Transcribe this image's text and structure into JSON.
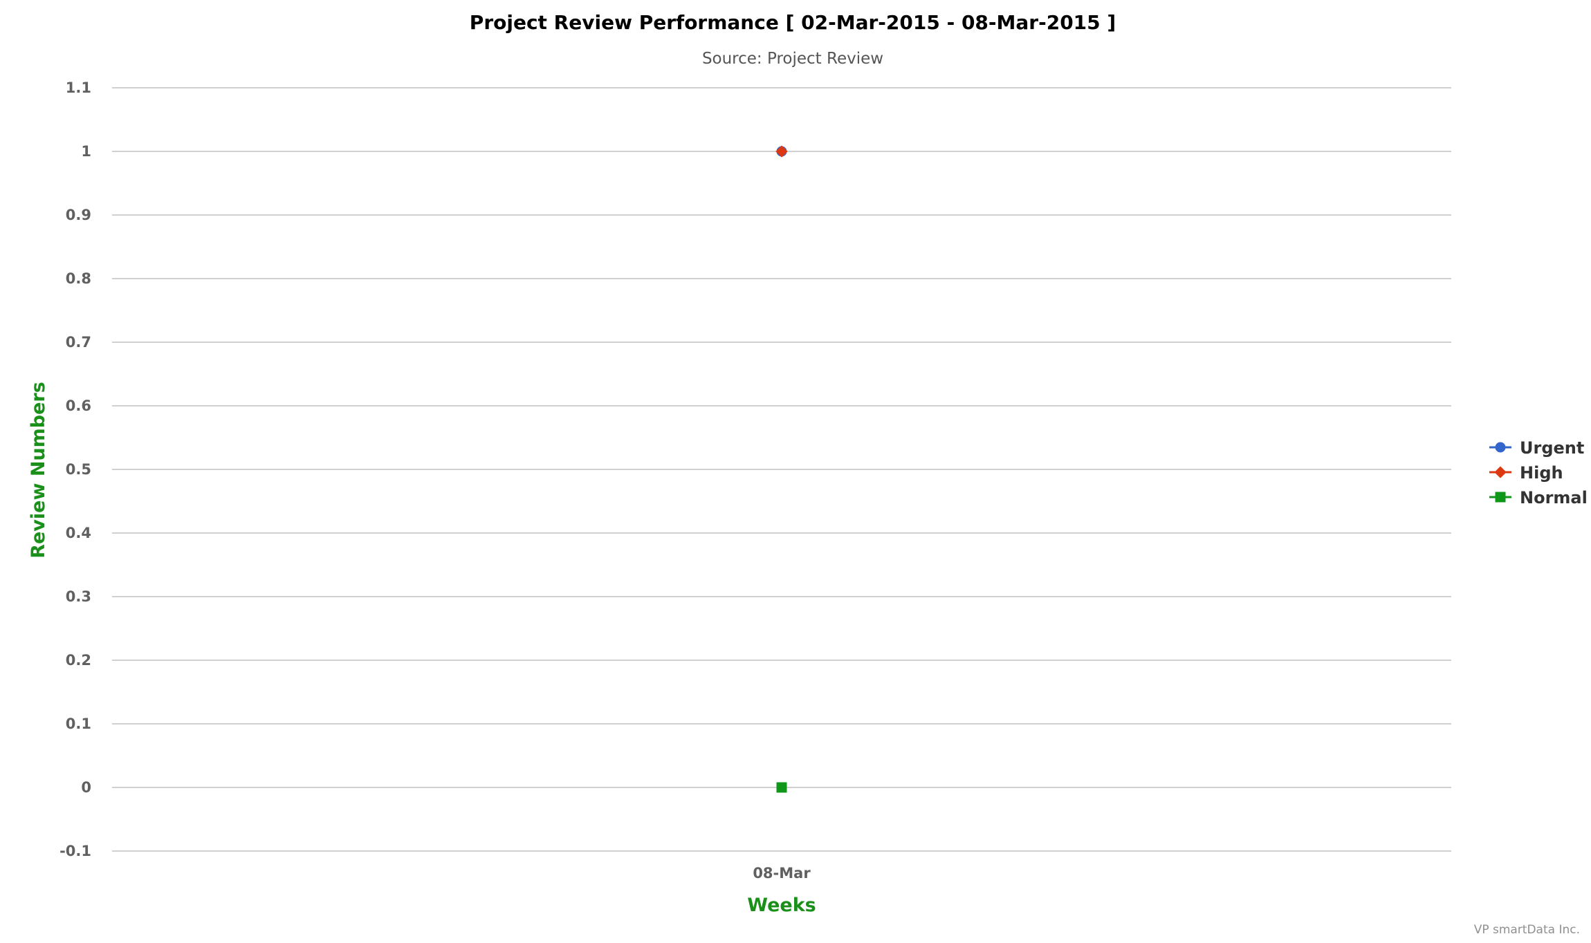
{
  "chart_data": {
    "type": "line",
    "title": "Project Review Performance [ 02-Mar-2015 - 08-Mar-2015 ]",
    "subtitle": "Source: Project Review",
    "xlabel": "Weeks",
    "ylabel": "Review Numbers",
    "categories": [
      "08-Mar"
    ],
    "ylim": [
      -0.1,
      1.1
    ],
    "yticks": [
      -0.1,
      0,
      0.1,
      0.2,
      0.3,
      0.4,
      0.5,
      0.6,
      0.7,
      0.8,
      0.9,
      1,
      1.1
    ],
    "ytick_labels": [
      "-0.1",
      "0",
      "0.1",
      "0.2",
      "0.3",
      "0.4",
      "0.5",
      "0.6",
      "0.7",
      "0.8",
      "0.9",
      "1",
      "1.1"
    ],
    "grid": true,
    "legend_position": "right",
    "axis_title_color": "#1a8f1a",
    "series": [
      {
        "name": "Urgent",
        "values": [
          1
        ],
        "color": "#3366cc",
        "marker": "circle"
      },
      {
        "name": "High",
        "values": [
          1
        ],
        "color": "#dc3912",
        "marker": "diamond"
      },
      {
        "name": "Normal",
        "values": [
          0
        ],
        "color": "#109618",
        "marker": "square"
      }
    ],
    "credits": "VP smartData Inc."
  }
}
